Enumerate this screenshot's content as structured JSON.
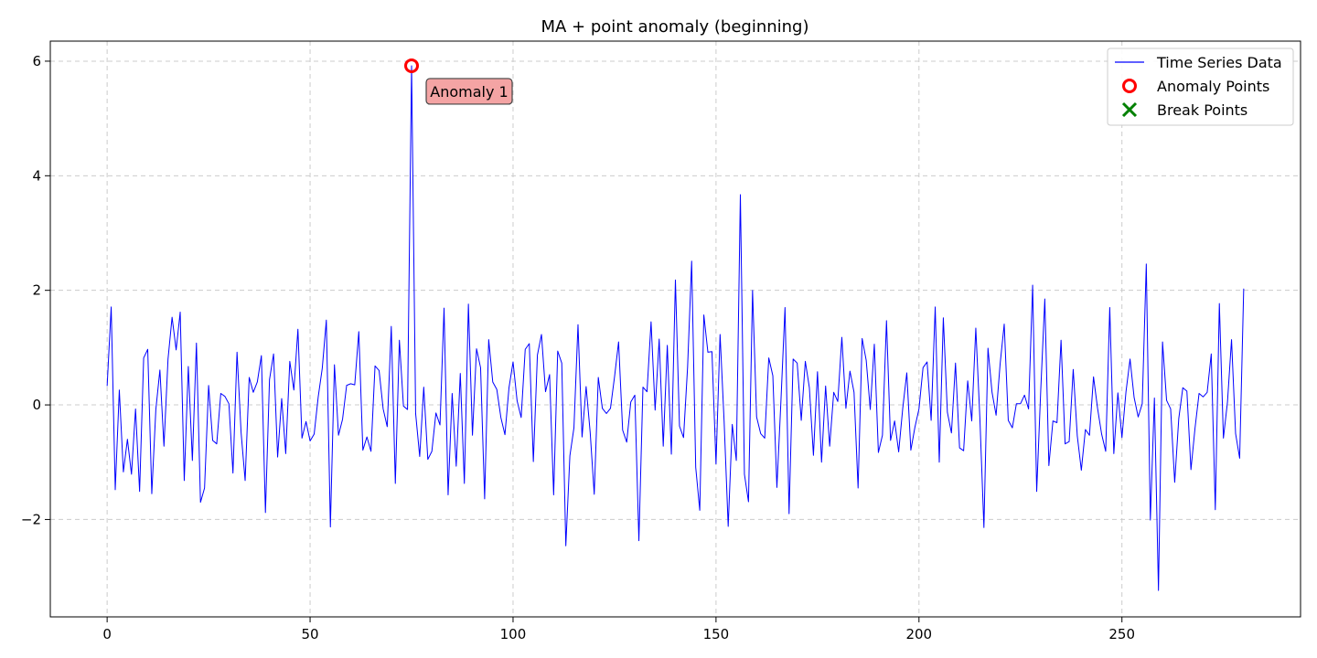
{
  "chart_data": {
    "type": "line",
    "title": "MA + point anomaly (beginning)",
    "xlabel": "",
    "ylabel": "",
    "xlim": [
      -14,
      294
    ],
    "ylim": [
      -3.7,
      6.35
    ],
    "xticks": [
      0,
      50,
      100,
      150,
      200,
      250
    ],
    "yticks": [
      -2,
      0,
      2,
      4,
      6
    ],
    "ytick_labels": [
      "−2",
      "0",
      "2",
      "4",
      "6"
    ],
    "grid": true,
    "legend_position": "top-right",
    "legend": [
      {
        "label": "Time Series Data",
        "marker": "line",
        "color": "#0000ff"
      },
      {
        "label": "Anomaly Points",
        "marker": "open-circle",
        "color": "#ff0000"
      },
      {
        "label": "Break Points",
        "marker": "x",
        "color": "#008000"
      }
    ],
    "series": [
      {
        "name": "Time Series Data",
        "color": "#0000ff",
        "x_start": 0,
        "values": [
          0.33,
          1.71,
          -1.48,
          0.26,
          -1.17,
          -0.6,
          -1.21,
          -0.07,
          -1.51,
          0.82,
          0.97,
          -1.55,
          -0.08,
          0.61,
          -0.72,
          0.8,
          1.53,
          0.96,
          1.62,
          -1.32,
          0.67,
          -0.97,
          1.08,
          -1.7,
          -1.45,
          0.34,
          -0.62,
          -0.68,
          0.2,
          0.15,
          0.02,
          -1.19,
          0.92,
          -0.48,
          -1.32,
          0.48,
          0.22,
          0.4,
          0.86,
          -1.88,
          0.44,
          0.89,
          -0.91,
          0.11,
          -0.85,
          0.76,
          0.26,
          1.32,
          -0.58,
          -0.29,
          -0.63,
          -0.51,
          0.14,
          0.64,
          1.48,
          -2.13,
          0.7,
          -0.53,
          -0.25,
          0.34,
          0.37,
          0.35,
          1.28,
          -0.79,
          -0.56,
          -0.81,
          0.68,
          0.6,
          -0.07,
          -0.38,
          1.37,
          -1.37,
          1.13,
          -0.02,
          -0.08,
          5.92,
          -0.15,
          -0.9,
          0.31,
          -0.95,
          -0.81,
          -0.14,
          -0.35,
          1.69,
          -1.57,
          0.2,
          -1.07,
          0.55,
          -1.37,
          1.76,
          -0.53,
          0.98,
          0.65,
          -1.64,
          1.14,
          0.4,
          0.27,
          -0.22,
          -0.52,
          0.3,
          0.75,
          0.07,
          -0.22,
          0.97,
          1.07,
          -0.99,
          0.87,
          1.23,
          0.23,
          0.53,
          -1.57,
          0.94,
          0.73,
          -2.46,
          -0.89,
          -0.4,
          1.4,
          -0.56,
          0.32,
          -0.48,
          -1.56,
          0.48,
          -0.06,
          -0.15,
          -0.06,
          0.49,
          1.1,
          -0.44,
          -0.65,
          0.05,
          0.17,
          -2.37,
          0.31,
          0.23,
          1.45,
          -0.09,
          1.15,
          -0.72,
          1.04,
          -0.86,
          2.18,
          -0.37,
          -0.57,
          0.66,
          2.51,
          -1.09,
          -1.84,
          1.57,
          0.92,
          0.93,
          -1.03,
          1.23,
          -0.29,
          -2.12,
          -0.34,
          -0.97,
          3.67,
          -1.21,
          -1.69,
          2.0,
          -0.21,
          -0.5,
          -0.58,
          0.82,
          0.51,
          -1.44,
          0.08,
          1.7,
          -1.9,
          0.8,
          0.73,
          -0.27,
          0.76,
          0.3,
          -0.88,
          0.58,
          -1.0,
          0.33,
          -0.72,
          0.22,
          0.06,
          1.18,
          -0.06,
          0.59,
          0.22,
          -1.45,
          1.16,
          0.78,
          -0.08,
          1.06,
          -0.83,
          -0.53,
          1.47,
          -0.62,
          -0.28,
          -0.82,
          -0.06,
          0.56,
          -0.79,
          -0.39,
          -0.07,
          0.65,
          0.75,
          -0.27,
          1.71,
          -1.0,
          1.52,
          -0.13,
          -0.49,
          0.73,
          -0.75,
          -0.8,
          0.42,
          -0.28,
          1.34,
          -0.22,
          -2.14,
          0.99,
          0.22,
          -0.18,
          0.72,
          1.41,
          -0.27,
          -0.4,
          0.02,
          0.02,
          0.17,
          -0.07,
          2.09,
          -1.51,
          0.26,
          1.85,
          -1.06,
          -0.28,
          -0.31,
          1.13,
          -0.68,
          -0.64,
          0.62,
          -0.54,
          -1.14,
          -0.43,
          -0.53,
          0.49,
          -0.06,
          -0.51,
          -0.81,
          1.7,
          -0.85,
          0.21,
          -0.57,
          0.23,
          0.8,
          0.13,
          -0.21,
          0.02,
          2.46,
          -2.01,
          0.12,
          -3.24,
          1.1,
          0.08,
          -0.07,
          -1.35,
          -0.24,
          0.3,
          0.24,
          -1.13,
          -0.41,
          0.2,
          0.14,
          0.22,
          0.89,
          -1.83,
          1.77,
          -0.58,
          0.05,
          1.14,
          -0.5,
          -0.93,
          2.03
        ]
      }
    ],
    "anomaly_points": [
      {
        "x": 75,
        "y": 5.92
      }
    ],
    "break_points": [],
    "annotations": [
      {
        "text": "Anomaly 1",
        "x": 75,
        "y": 5.92
      }
    ]
  }
}
